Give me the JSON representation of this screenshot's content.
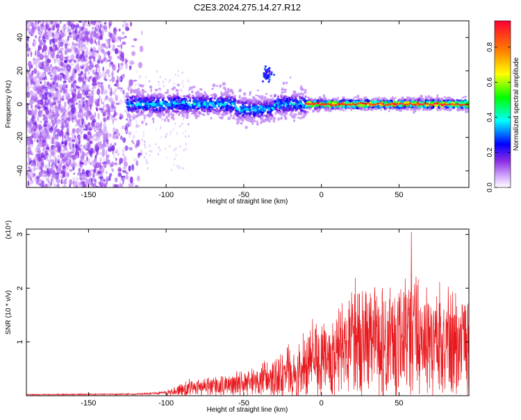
{
  "title": "C2E3.2024.275.14.27.R12",
  "chart_data": [
    {
      "type": "heatmap",
      "xlabel": "Height of straight line (km)",
      "ylabel": "Frequency (Hz)",
      "xlim": [
        -190,
        95
      ],
      "ylim": [
        -50,
        50
      ],
      "x_ticks": [
        -150,
        -100,
        -50,
        0,
        50
      ],
      "y_ticks": [
        -40,
        -20,
        0,
        20,
        40
      ],
      "colorbar": {
        "label": "Normalized spectral amplitude",
        "range": [
          0,
          0.95
        ],
        "ticks": [
          0.0,
          0.2,
          0.4,
          0.6,
          0.8
        ],
        "colors": [
          "#ffffff",
          "#8a2be2",
          "#0000ff",
          "#00ffff",
          "#00ff00",
          "#ffff00",
          "#ff8000",
          "#ff0000"
        ]
      },
      "features": {
        "noise_region_x": [
          -190,
          -120
        ],
        "trace_region_x": [
          -125,
          95
        ],
        "secondary_blob": {
          "x": -35,
          "y": 18
        }
      }
    },
    {
      "type": "line",
      "xlabel": "Height of straight line (km)",
      "ylabel": "SNR (10 * v/v)",
      "exponent_label": "(x10⁴)",
      "xlim": [
        -190,
        95
      ],
      "ylim": [
        0,
        3.1
      ],
      "x_ticks": [
        -150,
        -100,
        -50,
        0,
        50
      ],
      "y_ticks": [
        1,
        2,
        3
      ],
      "color": "#e8191e",
      "envelope": {
        "x": [
          -190,
          -120,
          -100,
          -90,
          -80,
          -60,
          -50,
          -40,
          -30,
          -20,
          -10,
          -5,
          0,
          10,
          20,
          30,
          40,
          50,
          60,
          70,
          80,
          95
        ],
        "y": [
          0.02,
          0.03,
          0.06,
          0.18,
          0.25,
          0.3,
          0.35,
          0.45,
          0.55,
          0.7,
          0.9,
          1.2,
          1.0,
          1.3,
          1.5,
          1.6,
          1.5,
          1.6,
          1.9,
          1.5,
          1.6,
          1.5
        ]
      },
      "peak": {
        "x": 58,
        "y": 3.05
      }
    }
  ]
}
